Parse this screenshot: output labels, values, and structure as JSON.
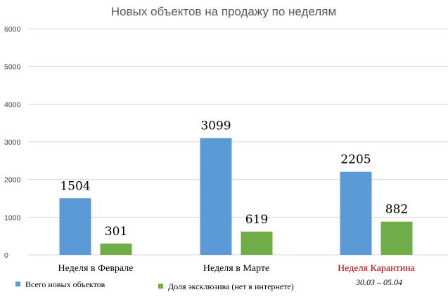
{
  "chart_data": {
    "type": "bar",
    "title": "Новых объектов на продажу по неделям",
    "categories": [
      "Неделя в Феврале",
      "Неделя в Марте",
      "Неделя Карантина"
    ],
    "category_sublabels": [
      "",
      "",
      "30.03 – 05.04"
    ],
    "category_label_colors": [
      "#000000",
      "#000000",
      "#c00000"
    ],
    "series": [
      {
        "name": "Всего новых объектов",
        "color": "#5b9bd5",
        "values": [
          1504,
          3099,
          2205
        ]
      },
      {
        "name": "Доля эксклюзива (нет в интернете)",
        "color": "#70ad47",
        "values": [
          301,
          619,
          882
        ]
      }
    ],
    "y_ticks": [
      "0",
      "1000",
      "2000",
      "3000",
      "4000",
      "5000",
      "6000"
    ],
    "legend_position": "bottom",
    "grid": true
  }
}
